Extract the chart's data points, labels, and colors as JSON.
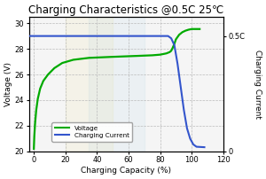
{
  "title": "Charging Characteristics @0.5C 25℃",
  "xlabel": "Charging Capacity (%)",
  "ylabel_left": "Voltage (V)",
  "ylabel_right": "Charging Current",
  "right_ytick_labels": [
    "0",
    "0.5C"
  ],
  "right_ytick_vals": [
    0,
    0.5
  ],
  "xlim": [
    -3,
    118
  ],
  "ylim_left": [
    20.0,
    30.5
  ],
  "ylim_right": [
    0.0,
    0.583
  ],
  "xticks": [
    0,
    20,
    40,
    60,
    80,
    100,
    120
  ],
  "yticks_left": [
    20.0,
    22.0,
    24.0,
    26.0,
    28.0,
    30.0
  ],
  "voltage_color": "#00aa00",
  "current_color": "#3355cc",
  "grid_color": "#bbbbbb",
  "bg_color": "#f5f5f5",
  "legend_labels": [
    "Voltage",
    "Charging Current"
  ],
  "title_fontsize": 8.5,
  "axis_fontsize": 6.5,
  "tick_fontsize": 6.0,
  "voltage_x": [
    0,
    0.3,
    0.8,
    1.5,
    2.5,
    4,
    6,
    9,
    13,
    18,
    25,
    35,
    50,
    65,
    75,
    80,
    84,
    86,
    87,
    88,
    89,
    90,
    92,
    94,
    96,
    98,
    100,
    102,
    105
  ],
  "voltage_y": [
    20.2,
    21.2,
    22.2,
    23.2,
    24.1,
    24.9,
    25.5,
    26.0,
    26.5,
    26.9,
    27.15,
    27.3,
    27.38,
    27.45,
    27.5,
    27.55,
    27.65,
    27.75,
    27.85,
    28.1,
    28.4,
    28.75,
    29.1,
    29.3,
    29.42,
    29.5,
    29.55,
    29.55,
    29.55
  ],
  "current_x": [
    -3,
    0,
    84,
    85,
    87,
    89,
    91,
    93,
    95,
    97,
    99,
    101,
    103,
    108
  ],
  "current_norm": [
    0.5,
    0.5,
    0.5,
    0.5,
    0.49,
    0.46,
    0.38,
    0.28,
    0.18,
    0.1,
    0.055,
    0.03,
    0.02,
    0.018
  ]
}
